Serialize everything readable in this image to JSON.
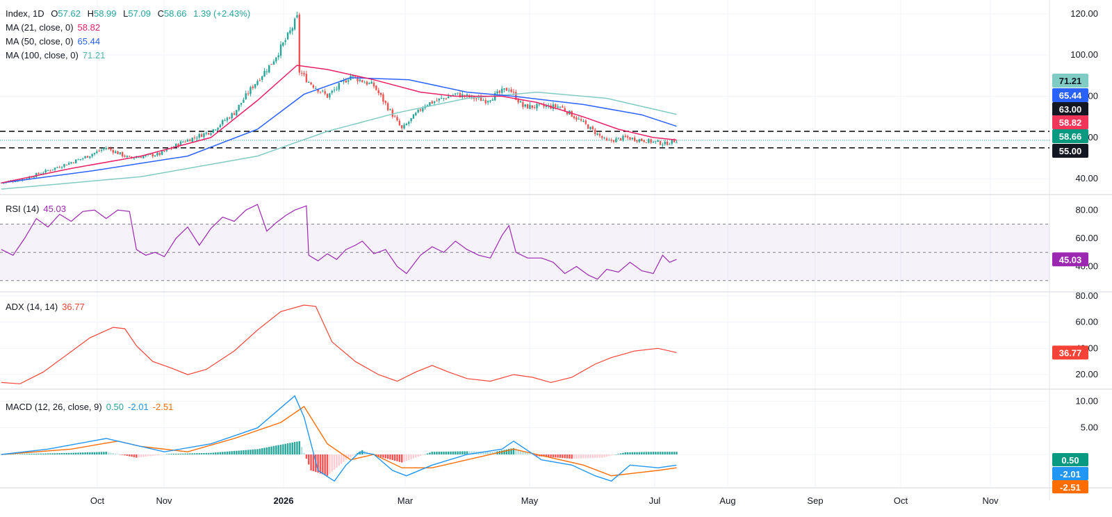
{
  "colors": {
    "up": "#26a69a",
    "down": "#ef5350",
    "ma21": "#e91e63",
    "ma50": "#2962ff",
    "ma100": "#80cbc4",
    "rsi": "#9c27b0",
    "adx": "#f44336",
    "macd": "#2196f3",
    "signal": "#ff6d00",
    "grid": "#f0f3fa",
    "axis_text": "#131722"
  },
  "price_panel": {
    "symbol": "Index",
    "timeframe": "1D",
    "o_label": "O",
    "open": "57.62",
    "h_label": "H",
    "high": "58.99",
    "l_label": "L",
    "low": "57.09",
    "c_label": "C",
    "close": "58.66",
    "change": "1.39 (+2.43%)",
    "ma21_label": "MA (21, close, 0)",
    "ma21_value": "58.82",
    "ma50_label": "MA (50, close, 0)",
    "ma50_value": "65.44",
    "ma100_label": "MA (100, close, 0)",
    "ma100_value": "71.21",
    "badges": [
      "71.21",
      "65.44",
      "63.00",
      "58.82",
      "58.66",
      "55.00"
    ]
  },
  "rsi_panel": {
    "label": "RSI (14)",
    "value": "45.03",
    "badge": "45.03"
  },
  "adx_panel": {
    "label": "ADX (14, 14)",
    "value": "36.77",
    "badge": "36.77"
  },
  "macd_panel": {
    "label": "MACD (12, 26, close, 9)",
    "hist": "0.50",
    "macd": "-2.01",
    "signal": "-2.51",
    "badges": [
      "0.50",
      "-2.01",
      "-2.51"
    ]
  },
  "chart_data": [
    {
      "type": "candlestick",
      "title": "Index, 1D",
      "x_ticks": [
        "Oct",
        "Nov",
        "2026",
        "Mar",
        "May",
        "Jul",
        "Aug",
        "Sep",
        "Oct",
        "Nov"
      ],
      "y_ticks": [
        40,
        60,
        80,
        100,
        120
      ],
      "ylim": [
        33,
        125
      ],
      "grid": true,
      "horizontal_levels": [
        63.0,
        55.0
      ],
      "close_line": 58.66,
      "close_anchors": [
        [
          0,
          38
        ],
        [
          10,
          40
        ],
        [
          20,
          44
        ],
        [
          35,
          50
        ],
        [
          45,
          55
        ],
        [
          55,
          50
        ],
        [
          68,
          52
        ],
        [
          78,
          58
        ],
        [
          90,
          63
        ],
        [
          100,
          72
        ],
        [
          108,
          85
        ],
        [
          116,
          96
        ],
        [
          123,
          109
        ],
        [
          127,
          118
        ],
        [
          128,
          92
        ],
        [
          132,
          87
        ],
        [
          140,
          80
        ],
        [
          150,
          90
        ],
        [
          160,
          85
        ],
        [
          172,
          64
        ],
        [
          182,
          76
        ],
        [
          195,
          81
        ],
        [
          208,
          78
        ],
        [
          218,
          84
        ],
        [
          224,
          75
        ],
        [
          240,
          75
        ],
        [
          250,
          67
        ],
        [
          260,
          58
        ],
        [
          268,
          60
        ],
        [
          285,
          57
        ],
        [
          290,
          58.66
        ]
      ],
      "ma21": [
        [
          0,
          38
        ],
        [
          30,
          45
        ],
        [
          60,
          51
        ],
        [
          90,
          60
        ],
        [
          110,
          78
        ],
        [
          127,
          95
        ],
        [
          140,
          93
        ],
        [
          160,
          88
        ],
        [
          180,
          82
        ],
        [
          195,
          80
        ],
        [
          215,
          80
        ],
        [
          230,
          77
        ],
        [
          250,
          70
        ],
        [
          265,
          64
        ],
        [
          280,
          60
        ],
        [
          290,
          58.82
        ]
      ],
      "ma50": [
        [
          0,
          38
        ],
        [
          40,
          44
        ],
        [
          80,
          51
        ],
        [
          110,
          64
        ],
        [
          130,
          81
        ],
        [
          150,
          89
        ],
        [
          175,
          88
        ],
        [
          200,
          82
        ],
        [
          220,
          80
        ],
        [
          250,
          76
        ],
        [
          275,
          71
        ],
        [
          290,
          65.44
        ]
      ],
      "ma100": [
        [
          0,
          35
        ],
        [
          60,
          41
        ],
        [
          110,
          51
        ],
        [
          140,
          63
        ],
        [
          170,
          72
        ],
        [
          200,
          79
        ],
        [
          230,
          82
        ],
        [
          260,
          79
        ],
        [
          290,
          71.21
        ]
      ]
    },
    {
      "type": "line",
      "title": "RSI (14)",
      "y_ticks": [
        40,
        60,
        80
      ],
      "ylim": [
        23,
        90
      ],
      "band": [
        30,
        70
      ],
      "midline": 50,
      "series": [
        {
          "name": "RSI (14)",
          "values": [
            [
              0,
              52
            ],
            [
              5,
              48
            ],
            [
              10,
              60
            ],
            [
              15,
              74
            ],
            [
              20,
              68
            ],
            [
              25,
              77
            ],
            [
              30,
              72
            ],
            [
              35,
              79
            ],
            [
              40,
              80
            ],
            [
              45,
              74
            ],
            [
              50,
              80
            ],
            [
              55,
              79
            ],
            [
              58,
              52
            ],
            [
              62,
              48
            ],
            [
              66,
              50
            ],
            [
              70,
              47
            ],
            [
              75,
              60
            ],
            [
              80,
              68
            ],
            [
              85,
              55
            ],
            [
              90,
              67
            ],
            [
              95,
              75
            ],
            [
              100,
              72
            ],
            [
              105,
              80
            ],
            [
              110,
              84
            ],
            [
              114,
              65
            ],
            [
              118,
              71
            ],
            [
              122,
              76
            ],
            [
              126,
              80
            ],
            [
              131,
              83
            ],
            [
              132,
              48
            ],
            [
              136,
              44
            ],
            [
              140,
              49
            ],
            [
              144,
              45
            ],
            [
              148,
              52
            ],
            [
              152,
              55
            ],
            [
              155,
              58
            ],
            [
              160,
              49
            ],
            [
              165,
              52
            ],
            [
              170,
              40
            ],
            [
              174,
              35
            ],
            [
              180,
              48
            ],
            [
              185,
              54
            ],
            [
              190,
              50
            ],
            [
              195,
              58
            ],
            [
              200,
              52
            ],
            [
              205,
              48
            ],
            [
              210,
              46
            ],
            [
              215,
              62
            ],
            [
              218,
              69
            ],
            [
              221,
              50
            ],
            [
              226,
              46
            ],
            [
              232,
              46
            ],
            [
              237,
              43
            ],
            [
              242,
              35
            ],
            [
              247,
              40
            ],
            [
              252,
              34
            ],
            [
              256,
              31
            ],
            [
              260,
              38
            ],
            [
              265,
              36
            ],
            [
              270,
              43
            ],
            [
              275,
              37
            ],
            [
              280,
              35
            ],
            [
              284,
              48
            ],
            [
              287,
              43
            ],
            [
              290,
              45.03
            ]
          ]
        }
      ]
    },
    {
      "type": "line",
      "title": "ADX (14, 14)",
      "y_ticks": [
        20,
        40,
        60,
        80
      ],
      "ylim": [
        10,
        82
      ],
      "series": [
        {
          "name": "ADX (14, 14)",
          "values": [
            [
              0,
              14
            ],
            [
              8,
              13
            ],
            [
              18,
              22
            ],
            [
              28,
              35
            ],
            [
              38,
              48
            ],
            [
              48,
              56
            ],
            [
              53,
              55
            ],
            [
              58,
              42
            ],
            [
              65,
              30
            ],
            [
              73,
              25
            ],
            [
              80,
              20
            ],
            [
              88,
              24
            ],
            [
              100,
              38
            ],
            [
              110,
              54
            ],
            [
              120,
              68
            ],
            [
              130,
              73
            ],
            [
              135,
              72
            ],
            [
              142,
              45
            ],
            [
              152,
              30
            ],
            [
              162,
              20
            ],
            [
              170,
              15
            ],
            [
              178,
              22
            ],
            [
              185,
              27
            ],
            [
              192,
              22
            ],
            [
              200,
              17
            ],
            [
              210,
              15
            ],
            [
              220,
              20
            ],
            [
              228,
              18
            ],
            [
              236,
              14
            ],
            [
              245,
              18
            ],
            [
              255,
              28
            ],
            [
              262,
              33
            ],
            [
              272,
              38
            ],
            [
              282,
              40
            ],
            [
              287,
              38
            ],
            [
              290,
              36.77
            ]
          ]
        }
      ]
    },
    {
      "type": "line",
      "title": "MACD (12, 26, close, 9)",
      "y_ticks": [
        0,
        5,
        10
      ],
      "ylim": [
        -6,
        12
      ],
      "series": [
        {
          "name": "MACD",
          "values": [
            [
              0,
              0
            ],
            [
              20,
              1
            ],
            [
              45,
              3
            ],
            [
              55,
              2
            ],
            [
              70,
              0.5
            ],
            [
              90,
              2
            ],
            [
              110,
              5
            ],
            [
              126,
              11
            ],
            [
              130,
              7
            ],
            [
              136,
              -3
            ],
            [
              143,
              -5
            ],
            [
              148,
              -2
            ],
            [
              154,
              0.5
            ],
            [
              160,
              0
            ],
            [
              168,
              -3
            ],
            [
              174,
              -4
            ],
            [
              185,
              -2
            ],
            [
              200,
              0
            ],
            [
              215,
              1
            ],
            [
              220,
              2.5
            ],
            [
              232,
              -1
            ],
            [
              245,
              -2
            ],
            [
              255,
              -4
            ],
            [
              262,
              -5
            ],
            [
              270,
              -2
            ],
            [
              282,
              -2.5
            ],
            [
              290,
              -2.01
            ]
          ]
        },
        {
          "name": "Signal",
          "values": [
            [
              0,
              0
            ],
            [
              30,
              1
            ],
            [
              50,
              2.5
            ],
            [
              60,
              1.5
            ],
            [
              80,
              0.5
            ],
            [
              100,
              3
            ],
            [
              120,
              6
            ],
            [
              130,
              9
            ],
            [
              140,
              2
            ],
            [
              150,
              -1
            ],
            [
              160,
              0
            ],
            [
              172,
              -2.5
            ],
            [
              185,
              -2.5
            ],
            [
              200,
              -1
            ],
            [
              220,
              1
            ],
            [
              235,
              -0.5
            ],
            [
              250,
              -2
            ],
            [
              262,
              -4
            ],
            [
              272,
              -3.5
            ],
            [
              282,
              -3
            ],
            [
              290,
              -2.51
            ]
          ]
        },
        {
          "name": "Histogram",
          "values": [
            [
              0,
              0
            ],
            [
              30,
              0.3
            ],
            [
              45,
              0.5
            ],
            [
              58,
              -0.6
            ],
            [
              72,
              0.1
            ],
            [
              90,
              0.3
            ],
            [
              110,
              1
            ],
            [
              128,
              2.5
            ],
            [
              133,
              -3
            ],
            [
              140,
              -4
            ],
            [
              148,
              -1
            ],
            [
              155,
              0.8
            ],
            [
              163,
              -0.5
            ],
            [
              172,
              -1.5
            ],
            [
              185,
              0.5
            ],
            [
              200,
              0.6
            ],
            [
              212,
              0.5
            ],
            [
              220,
              1.2
            ],
            [
              230,
              -0.3
            ],
            [
              245,
              -0.8
            ],
            [
              258,
              -0.6
            ],
            [
              268,
              0.4
            ],
            [
              280,
              0.5
            ],
            [
              290,
              0.5
            ]
          ]
        }
      ]
    }
  ]
}
